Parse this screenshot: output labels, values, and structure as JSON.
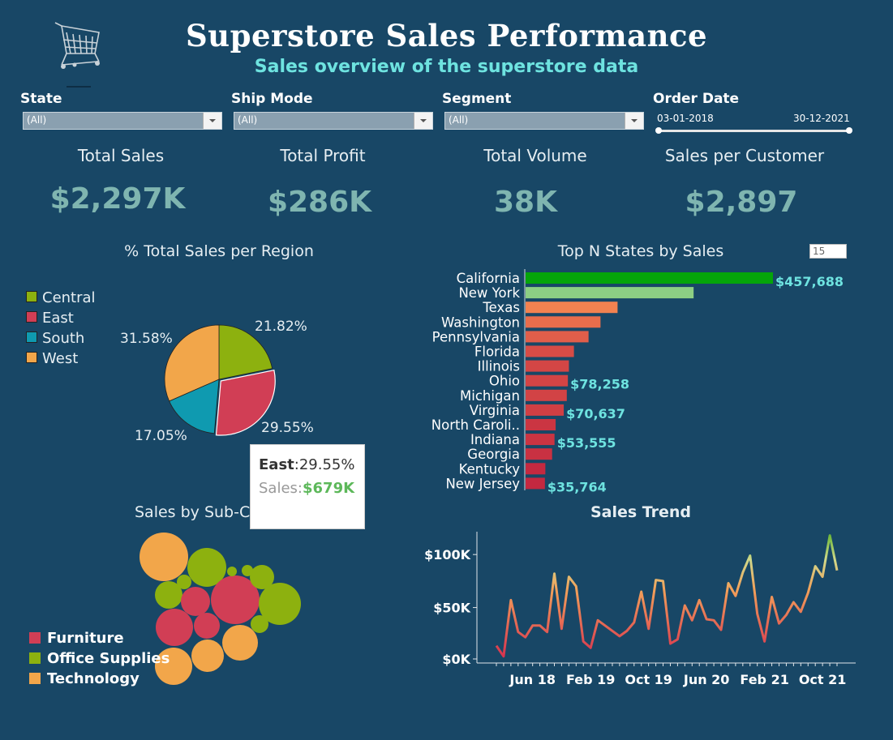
{
  "header": {
    "title": "Superstore Sales Performance",
    "subtitle": "Sales overview of the superstore data"
  },
  "filters": {
    "state": {
      "label": "State",
      "value": "(All)"
    },
    "ship_mode": {
      "label": "Ship Mode",
      "value": "(All)"
    },
    "segment": {
      "label": "Segment",
      "value": "(All)"
    },
    "order_date": {
      "label": "Order Date",
      "start": "03-01-2018",
      "end": "30-12-2021"
    }
  },
  "kpis": [
    {
      "label": "Total Sales",
      "value": "$2,297K"
    },
    {
      "label": "Total Profit",
      "value": "$286K"
    },
    {
      "label": "Total Volume",
      "value": "38K"
    },
    {
      "label": "Sales per Customer",
      "value": "$2,897"
    }
  ],
  "colors": {
    "background": "#184766",
    "central": "#8db10f",
    "east": "#d13e55",
    "south": "#0f9ab0",
    "west": "#f2a64a",
    "accent_text": "#6ee3e0",
    "kpi_value": "#7fb5b0"
  },
  "tooltip": {
    "region_label": "East",
    "region_value": "29.55%",
    "sales_label": "Sales",
    "sales_value": "$679K"
  },
  "top_n": {
    "label": "15"
  },
  "bubble": {
    "title": "Sales by Sub-Ca",
    "legend": [
      "Furniture",
      "Office Supplies",
      "Technology"
    ]
  },
  "icons": {
    "logo": "shopping-cart-icon"
  },
  "chart_data": [
    {
      "type": "pie",
      "title": "% Total Sales per Region",
      "categories": [
        "Central",
        "East",
        "South",
        "West"
      ],
      "values": [
        21.82,
        29.55,
        17.05,
        31.58
      ],
      "labels": [
        "21.82%",
        "29.55%",
        "17.05%",
        "31.58%"
      ],
      "legend_position": "left"
    },
    {
      "type": "bar",
      "title": "Top N States by Sales",
      "orientation": "horizontal",
      "categories": [
        "California",
        "New York",
        "Texas",
        "Washington",
        "Pennsylvania",
        "Florida",
        "Illinois",
        "Ohio",
        "Michigan",
        "Virginia",
        "North Caroli..",
        "Indiana",
        "Georgia",
        "Kentucky",
        "New Jersey"
      ],
      "values": [
        457688,
        310876,
        170188,
        138641,
        116512,
        89474,
        80166,
        78258,
        76270,
        70637,
        55603,
        53555,
        49096,
        36592,
        35764
      ],
      "data_labels": [
        "$457,688",
        "",
        "",
        "",
        "",
        "",
        "",
        "$78,258",
        "",
        "$70,637",
        "",
        "$53,555",
        "",
        "",
        "$35,764"
      ]
    },
    {
      "type": "line",
      "title": "Sales Trend",
      "x_tick_labels": [
        "Jun 18",
        "Feb 19",
        "Oct 19",
        "Jun 20",
        "Feb 21",
        "Oct 21"
      ],
      "y_tick_labels": [
        "$100K",
        "$50K",
        "$0K"
      ],
      "ylim": [
        0,
        120000
      ],
      "x": [
        "Jan 18",
        "Feb 18",
        "Mar 18",
        "Apr 18",
        "May 18",
        "Jun 18",
        "Jul 18",
        "Aug 18",
        "Sep 18",
        "Oct 18",
        "Nov 18",
        "Dec 18",
        "Jan 19",
        "Feb 19",
        "Mar 19",
        "Apr 19",
        "May 19",
        "Jun 19",
        "Jul 19",
        "Aug 19",
        "Sep 19",
        "Oct 19",
        "Nov 19",
        "Dec 19",
        "Jan 20",
        "Feb 20",
        "Mar 20",
        "Apr 20",
        "May 20",
        "Jun 20",
        "Jul 20",
        "Aug 20",
        "Sep 20",
        "Oct 20",
        "Nov 20",
        "Dec 20",
        "Jan 21",
        "Feb 21",
        "Mar 21",
        "Apr 21",
        "May 21",
        "Jun 21",
        "Jul 21",
        "Aug 21",
        "Sep 21",
        "Oct 21",
        "Nov 21",
        "Dec 21"
      ],
      "values": [
        14000,
        4000,
        57000,
        27000,
        22000,
        33000,
        33000,
        27000,
        82000,
        30000,
        79000,
        70000,
        18000,
        12000,
        38000,
        33000,
        28000,
        23000,
        28000,
        36000,
        65000,
        30000,
        76000,
        75000,
        16000,
        20000,
        52000,
        38000,
        57000,
        39000,
        38000,
        29000,
        73000,
        61000,
        83000,
        99000,
        44000,
        18000,
        60000,
        35000,
        43000,
        55000,
        46000,
        64000,
        89000,
        79000,
        118000,
        85000
      ]
    },
    {
      "type": "bubble",
      "title": "Sales by Sub-Ca",
      "series": [
        {
          "name": "Furniture",
          "values": [
            114000,
            92000,
            42000,
            25000
          ]
        },
        {
          "name": "Office Supplies",
          "values": [
            78000,
            62000,
            33000,
            20000,
            12000,
            7000,
            3000,
            2000,
            1000
          ]
        },
        {
          "name": "Technology",
          "values": [
            114000,
            57000,
            48000,
            43000
          ]
        }
      ]
    }
  ]
}
